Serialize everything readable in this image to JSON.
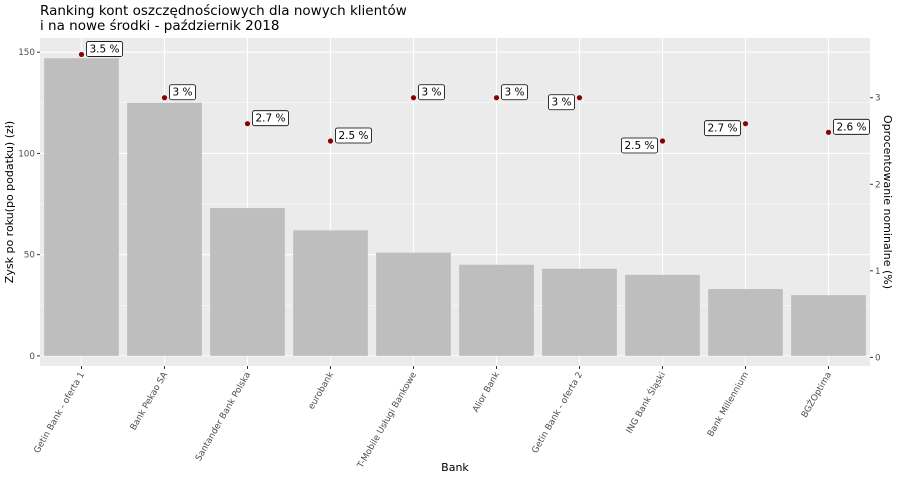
{
  "chart_data": {
    "type": "bar",
    "title": [
      "Ranking kont oszczędnościowych dla nowych klientów",
      "i na nowe środki - październik 2018"
    ],
    "xlabel": "Bank",
    "ylabel": "Zysk po roku(po podatku) (zł)",
    "y2label": "Oprocentowanie nominalne (%)",
    "categories": [
      "Getin Bank - oferta 1",
      "Bank Pekao SA",
      "Santander Bank Polska",
      "eurobank",
      "T-Mobile Usługi Bankowe",
      "Alior Bank",
      "Getin Bank - oferta 2",
      "ING Bank Śląski",
      "Bank Millennium",
      "BGŻOptima"
    ],
    "series": [
      {
        "axis": "left",
        "mark": "bar",
        "color": "#bebebe",
        "values": [
          147,
          125,
          73,
          62,
          51,
          45,
          43,
          40,
          33,
          30
        ]
      },
      {
        "axis": "right",
        "mark": "point",
        "color": "#8b0000",
        "values": [
          3.5,
          3.0,
          2.7,
          2.5,
          3.0,
          3.0,
          3.0,
          2.5,
          2.7,
          2.6
        ]
      }
    ],
    "point_labels": [
      "3.5 %",
      "3 %",
      "2.7 %",
      "2.5 %",
      "3 %",
      "3 %",
      "3 %",
      "2.5 %",
      "2.7 %",
      "2.6 %"
    ],
    "label_side": [
      "right",
      "right",
      "right",
      "right",
      "right",
      "right",
      "left",
      "left",
      "left",
      "right"
    ],
    "ylim": [
      -5,
      157
    ],
    "yticks": [
      0,
      50,
      100,
      150
    ],
    "y2lim": [
      -0.1,
      3.69
    ],
    "y2ticks": [
      0,
      1,
      2,
      3
    ],
    "grid": true,
    "panel_background": "#ebebeb",
    "grid_color": "#ffffff"
  }
}
